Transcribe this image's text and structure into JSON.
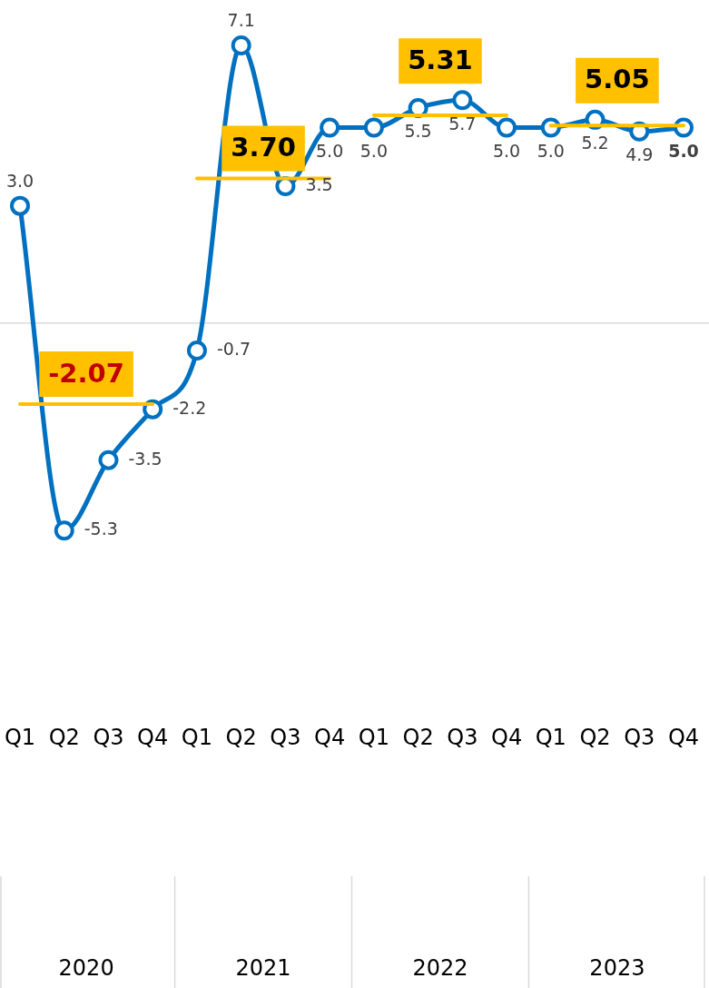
{
  "chart_data": {
    "type": "line",
    "categories": [
      "Q1",
      "Q2",
      "Q3",
      "Q4",
      "Q1",
      "Q2",
      "Q3",
      "Q4",
      "Q1",
      "Q2",
      "Q3",
      "Q4",
      "Q1",
      "Q2",
      "Q3",
      "Q4"
    ],
    "series": [
      {
        "color": "#0070c0",
        "values": [
          3.0,
          -5.3,
          -3.5,
          -2.2,
          -0.7,
          7.1,
          3.5,
          5.0,
          5.0,
          5.5,
          5.7,
          5.0,
          5.0,
          5.2,
          4.9,
          5.0
        ],
        "value_labels": [
          "3.0",
          "-5.3",
          "-3.5",
          "-2.2",
          "-0.7",
          "7.1",
          "3.5",
          "5.0",
          "5.0",
          "5.5",
          "5.7",
          "5.0",
          "5.0",
          "5.2",
          "4.9",
          "5.0"
        ],
        "marker": "circle"
      },
      {
        "color": "#ffc000",
        "values": [
          -2.07,
          -2.07,
          -2.07,
          -2.07,
          null,
          null,
          null,
          null,
          null,
          null,
          null,
          null,
          null,
          null,
          null,
          null
        ],
        "value_labels": [
          null,
          "-2.07",
          null,
          null,
          null,
          null,
          null,
          null,
          null,
          null,
          null,
          null,
          null,
          null,
          null,
          null
        ],
        "marker": "none"
      },
      {
        "color": "#ffc000",
        "values": [
          null,
          null,
          null,
          null,
          3.7,
          3.7,
          3.7,
          3.7,
          null,
          null,
          null,
          null,
          null,
          null,
          null,
          null
        ],
        "value_labels": [
          null,
          null,
          null,
          null,
          null,
          "3.70",
          null,
          null,
          null,
          null,
          null,
          null,
          null,
          null,
          null,
          null
        ],
        "marker": "none"
      },
      {
        "color": "#ffc000",
        "values": [
          null,
          null,
          null,
          null,
          null,
          null,
          null,
          null,
          5.31,
          5.31,
          5.31,
          5.31,
          null,
          null,
          null,
          null
        ],
        "value_labels": [
          null,
          null,
          null,
          null,
          null,
          null,
          null,
          null,
          null,
          "5.31",
          null,
          null,
          null,
          null,
          null,
          null
        ],
        "marker": "none"
      },
      {
        "color": "#ffc000",
        "values": [
          null,
          null,
          null,
          null,
          null,
          null,
          null,
          null,
          null,
          null,
          null,
          null,
          5.05,
          5.05,
          5.05,
          5.05
        ],
        "value_labels": [
          null,
          null,
          null,
          null,
          null,
          null,
          null,
          null,
          null,
          null,
          null,
          null,
          null,
          "5.05",
          null,
          null
        ],
        "marker": "none"
      }
    ],
    "annotations": [
      "2020",
      "2021",
      "2022",
      "2023"
    ],
    "ref_lines": [
      {
        "axis": "y",
        "value": 0,
        "color": "#d9d9d9"
      }
    ],
    "legend": false,
    "grid": false
  }
}
